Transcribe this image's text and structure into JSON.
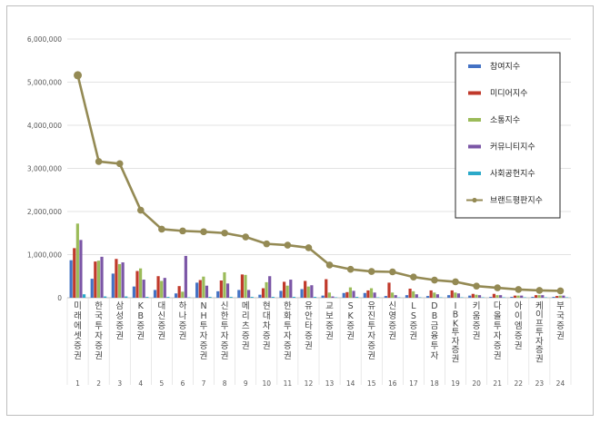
{
  "chart_data": {
    "type": "bar",
    "title": "",
    "xlabel": "",
    "ylabel": "",
    "ylim": [
      0,
      6000000
    ],
    "y_ticks": [
      "0",
      "1,000,000",
      "2,000,000",
      "3,000,000",
      "4,000,000",
      "5,000,000",
      "6,000,000"
    ],
    "grid": true,
    "legend_position": "top-right",
    "categories": [
      "미래에셋증권",
      "한국투자증권",
      "삼성증권",
      "KB증권",
      "대신증권",
      "하나증권",
      "NH투자증권",
      "신한투자증권",
      "메리츠증권",
      "현대차증권",
      "한화투자증권",
      "유안타증권",
      "교보증권",
      "SK증권",
      "유진투자증권",
      "신영증권",
      "LS증권",
      "DB금융투자",
      "IBK투자증권",
      "키움증권",
      "다올투자증권",
      "아이엠증권",
      "케이프투자증권",
      "부국증권"
    ],
    "index_labels": [
      "1",
      "2",
      "3",
      "4",
      "5",
      "6",
      "7",
      "8",
      "9",
      "10",
      "11",
      "12",
      "13",
      "14",
      "15",
      "16",
      "17",
      "18",
      "19",
      "20",
      "21",
      "22",
      "23",
      "24"
    ],
    "series": [
      {
        "name": "참여지수",
        "kind": "bar",
        "color": "#4472C4",
        "values": [
          870000,
          440000,
          560000,
          260000,
          180000,
          100000,
          350000,
          150000,
          180000,
          70000,
          160000,
          200000,
          50000,
          110000,
          110000,
          40000,
          60000,
          40000,
          60000,
          50000,
          20000,
          20000,
          20000,
          20000
        ]
      },
      {
        "name": "미디어지수",
        "kind": "bar",
        "color": "#C0392B",
        "values": [
          1150000,
          840000,
          900000,
          620000,
          500000,
          270000,
          410000,
          400000,
          540000,
          220000,
          370000,
          390000,
          430000,
          130000,
          170000,
          350000,
          210000,
          170000,
          170000,
          90000,
          90000,
          50000,
          60000,
          40000
        ]
      },
      {
        "name": "소통지수",
        "kind": "bar",
        "color": "#9BBB59",
        "values": [
          1720000,
          860000,
          780000,
          680000,
          390000,
          140000,
          490000,
          590000,
          530000,
          360000,
          280000,
          260000,
          120000,
          240000,
          220000,
          120000,
          150000,
          120000,
          120000,
          70000,
          60000,
          50000,
          60000,
          50000
        ]
      },
      {
        "name": "커뮤니티지수",
        "kind": "bar",
        "color": "#7B56A6",
        "values": [
          1340000,
          950000,
          820000,
          420000,
          460000,
          970000,
          280000,
          330000,
          180000,
          500000,
          420000,
          290000,
          30000,
          160000,
          120000,
          60000,
          80000,
          80000,
          100000,
          60000,
          60000,
          50000,
          60000,
          50000
        ]
      },
      {
        "name": "사회공헌지수",
        "kind": "bar",
        "color": "#2BA9C9",
        "values": [
          80000,
          30000,
          30000,
          20000,
          20000,
          10000,
          20000,
          20000,
          20000,
          20000,
          20000,
          20000,
          10000,
          20000,
          10000,
          10000,
          10000,
          10000,
          10000,
          10000,
          10000,
          10000,
          10000,
          10000
        ]
      },
      {
        "name": "브랜드평판지수",
        "kind": "line",
        "color": "#948A54",
        "values": [
          5160000,
          3160000,
          3110000,
          2030000,
          1590000,
          1550000,
          1530000,
          1500000,
          1410000,
          1250000,
          1220000,
          1160000,
          760000,
          660000,
          610000,
          600000,
          480000,
          410000,
          370000,
          270000,
          230000,
          190000,
          170000,
          160000
        ]
      }
    ]
  }
}
